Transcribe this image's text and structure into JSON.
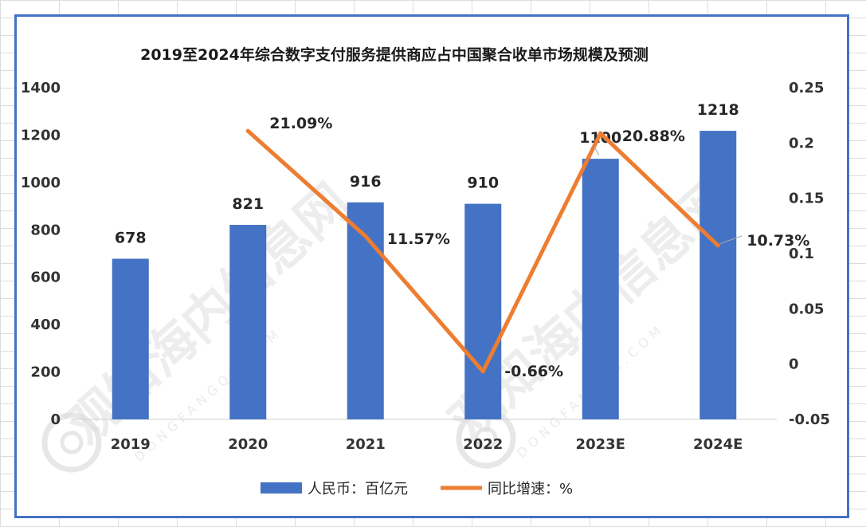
{
  "chart_data": {
    "type": "bar",
    "title": "2019至2024年综合数字支付服务提供商应占中国聚合收单市场规模及预测",
    "categories": [
      "2019",
      "2020",
      "2021",
      "2022",
      "2023E",
      "2024E"
    ],
    "series": [
      {
        "name": "人民币：百亿元",
        "type": "bar",
        "axis": "left",
        "color": "#4472c4",
        "values": [
          678,
          821,
          916,
          910,
          1100,
          1218
        ],
        "labels": [
          "678",
          "821",
          "916",
          "910",
          "1100",
          "1218"
        ]
      },
      {
        "name": "同比增速：%",
        "type": "line",
        "axis": "right",
        "color": "#ed7d31",
        "values": [
          null,
          0.2109,
          0.1157,
          -0.0066,
          0.2088,
          0.1073
        ],
        "labels": [
          "",
          "21.09%",
          "11.57%",
          "-0.66%",
          "20.88%",
          "10.73%"
        ]
      }
    ],
    "left_axis": {
      "ylim": [
        0,
        1400
      ],
      "ticks": [
        0,
        200,
        400,
        600,
        800,
        1000,
        1200,
        1400
      ],
      "tick_labels": [
        "0",
        "200",
        "400",
        "600",
        "800",
        "1000",
        "1200",
        "1400"
      ]
    },
    "right_axis": {
      "ylim": [
        -0.05,
        0.25
      ],
      "ticks": [
        -0.05,
        0,
        0.05,
        0.1,
        0.15,
        0.2,
        0.25
      ],
      "tick_labels": [
        "-0.05",
        "0",
        "0.05",
        "0.1",
        "0.15",
        "0.2",
        "0.25"
      ]
    },
    "grid": false,
    "legend": "bottom"
  },
  "watermark": {
    "text": "观知海内信息网",
    "domain": "DONGFANGQB.COM"
  }
}
